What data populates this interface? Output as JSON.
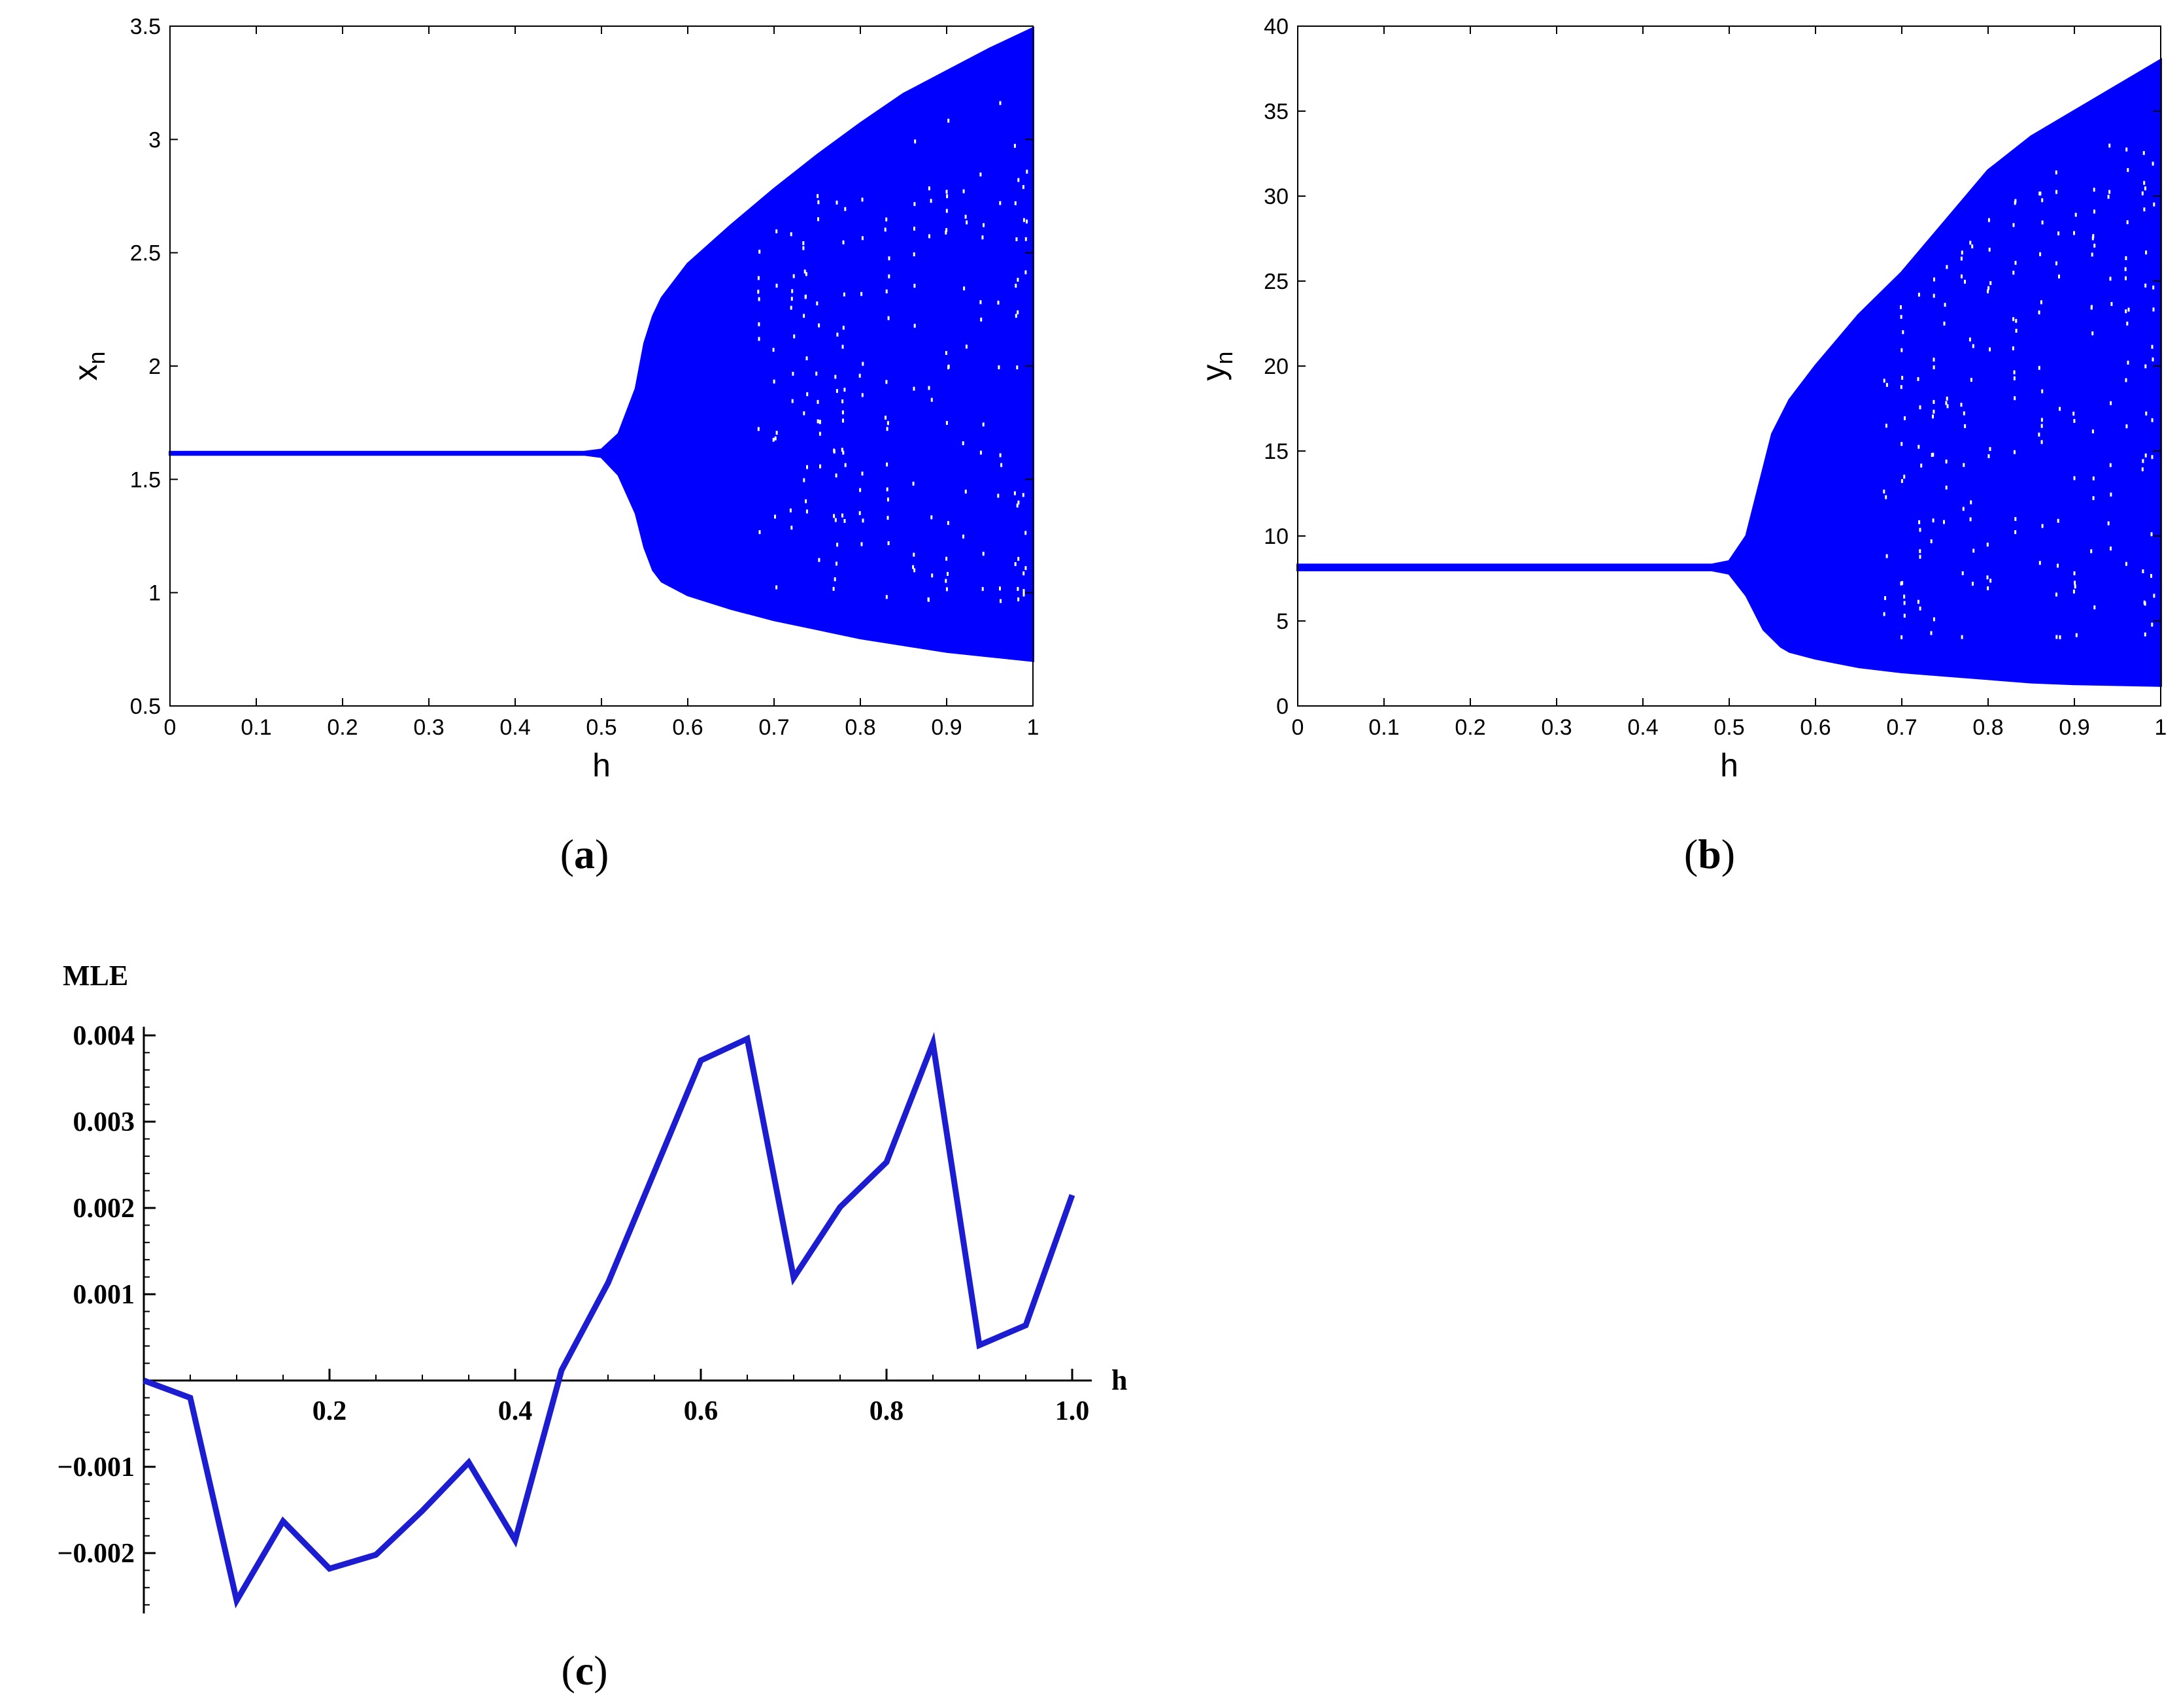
{
  "chart_data": [
    {
      "id": "a",
      "type": "scatter",
      "caption": "(a)",
      "caption_letter": "a",
      "xlabel": "h",
      "ylabel": "x",
      "ylabel_subscript": "n",
      "xlim": [
        0,
        1
      ],
      "ylim": [
        0.5,
        3.5
      ],
      "xticks": [
        "0",
        "0.1",
        "0.2",
        "0.3",
        "0.4",
        "0.5",
        "0.6",
        "0.7",
        "0.8",
        "0.9",
        "1"
      ],
      "yticks": [
        "0.5",
        "1",
        "1.5",
        "2",
        "2.5",
        "3",
        "3.5"
      ],
      "color": "#0000ff",
      "envelope": {
        "h": [
          0,
          0.45,
          0.48,
          0.5,
          0.52,
          0.54,
          0.55,
          0.56,
          0.57,
          0.6,
          0.65,
          0.7,
          0.75,
          0.8,
          0.85,
          0.9,
          0.95,
          1.0
        ],
        "upper": [
          1.62,
          1.62,
          1.62,
          1.63,
          1.7,
          1.9,
          2.1,
          2.22,
          2.3,
          2.45,
          2.62,
          2.78,
          2.93,
          3.07,
          3.2,
          3.3,
          3.4,
          3.49
        ],
        "lower": [
          1.61,
          1.61,
          1.61,
          1.6,
          1.52,
          1.35,
          1.2,
          1.1,
          1.05,
          0.99,
          0.93,
          0.88,
          0.84,
          0.8,
          0.77,
          0.74,
          0.72,
          0.7
        ]
      }
    },
    {
      "id": "b",
      "type": "scatter",
      "caption": "(b)",
      "caption_letter": "b",
      "xlabel": "h",
      "ylabel": "y",
      "ylabel_subscript": "n",
      "xlim": [
        0,
        1
      ],
      "ylim": [
        0,
        40
      ],
      "xticks": [
        "0",
        "0.1",
        "0.2",
        "0.3",
        "0.4",
        "0.5",
        "0.6",
        "0.7",
        "0.8",
        "0.9",
        "1"
      ],
      "yticks": [
        "0",
        "5",
        "10",
        "15",
        "20",
        "25",
        "30",
        "35",
        "40"
      ],
      "color": "#0000ff",
      "envelope": {
        "h": [
          0,
          0.48,
          0.5,
          0.52,
          0.54,
          0.55,
          0.56,
          0.57,
          0.6,
          0.65,
          0.7,
          0.75,
          0.8,
          0.85,
          0.9,
          0.95,
          1.0
        ],
        "upper": [
          8.3,
          8.3,
          8.5,
          10,
          14,
          16,
          17,
          18,
          20,
          23,
          25.5,
          28.5,
          31.5,
          33.5,
          35,
          36.5,
          38
        ],
        "lower": [
          8.0,
          8.0,
          7.8,
          6.5,
          4.5,
          4.0,
          3.5,
          3.2,
          2.8,
          2.3,
          2.0,
          1.8,
          1.6,
          1.4,
          1.3,
          1.25,
          1.2
        ]
      }
    },
    {
      "id": "c",
      "type": "line",
      "caption": "(c)",
      "caption_letter": "c",
      "ylabel": "MLE",
      "xlabel": "h",
      "xlim": [
        0,
        1.0
      ],
      "ylim": [
        -0.0027,
        0.0041
      ],
      "xticks": [
        "0.2",
        "0.4",
        "0.6",
        "0.8",
        "1.0"
      ],
      "yticks": [
        "0.004",
        "0.003",
        "0.002",
        "0.001",
        "−0.001",
        "−0.002"
      ],
      "color": "#1c1cd0",
      "x": [
        0,
        0.05,
        0.1,
        0.15,
        0.2,
        0.25,
        0.3,
        0.35,
        0.4,
        0.45,
        0.5,
        0.55,
        0.6,
        0.65,
        0.7,
        0.75,
        0.8,
        0.85,
        0.9,
        0.95,
        1.0
      ],
      "y": [
        0,
        -0.0002,
        -0.00255,
        -0.00163,
        -0.00218,
        -0.00202,
        -0.00151,
        -0.00095,
        -0.00185,
        0.00012,
        0.00113,
        0.00242,
        0.00371,
        0.00396,
        0.00119,
        0.00201,
        0.00253,
        0.00391,
        0.00041,
        0.00064,
        0.00215
      ]
    }
  ]
}
